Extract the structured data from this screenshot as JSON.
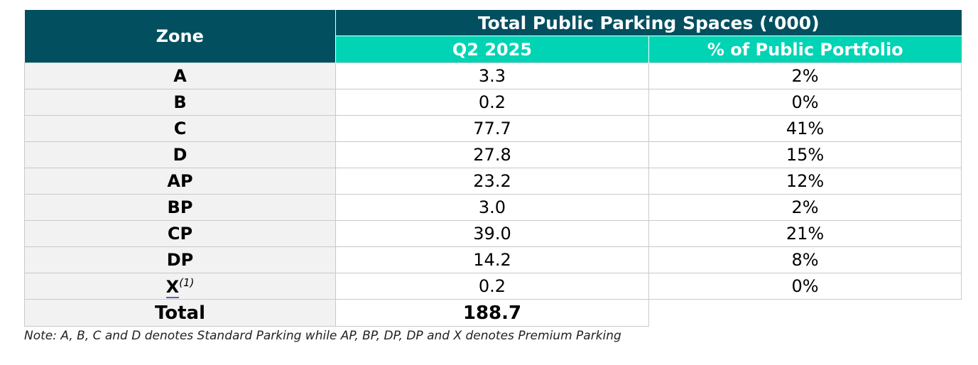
{
  "table": {
    "header": {
      "zone": "Zone",
      "group": "Total Public Parking Spaces (‘000)",
      "q2": "Q2 2025",
      "pct": "% of Public Portfolio"
    },
    "rows": [
      {
        "zone": "A",
        "q2": "3.3",
        "pct": "2%"
      },
      {
        "zone": "B",
        "q2": "0.2",
        "pct": "0%"
      },
      {
        "zone": "C",
        "q2": "77.7",
        "pct": "41%"
      },
      {
        "zone": "D",
        "q2": "27.8",
        "pct": "15%"
      },
      {
        "zone": "AP",
        "q2": "23.2",
        "pct": "12%"
      },
      {
        "zone": "BP",
        "q2": "3.0",
        "pct": "2%"
      },
      {
        "zone": "CP",
        "q2": "39.0",
        "pct": "21%"
      },
      {
        "zone": "DP",
        "q2": "14.2",
        "pct": "8%"
      },
      {
        "zone": "X",
        "footnote": "(1)",
        "q2": "0.2",
        "pct": "0%"
      }
    ],
    "total": {
      "label": "Total",
      "q2": "188.7"
    }
  },
  "note": "Note: A, B, C and D denotes Standard Parking while AP, BP, DP, DP and X denotes Premium Parking",
  "colors": {
    "header_dark": "#014f5f",
    "header_teal": "#00d4b4",
    "zone_bg": "#f2f2f2"
  }
}
